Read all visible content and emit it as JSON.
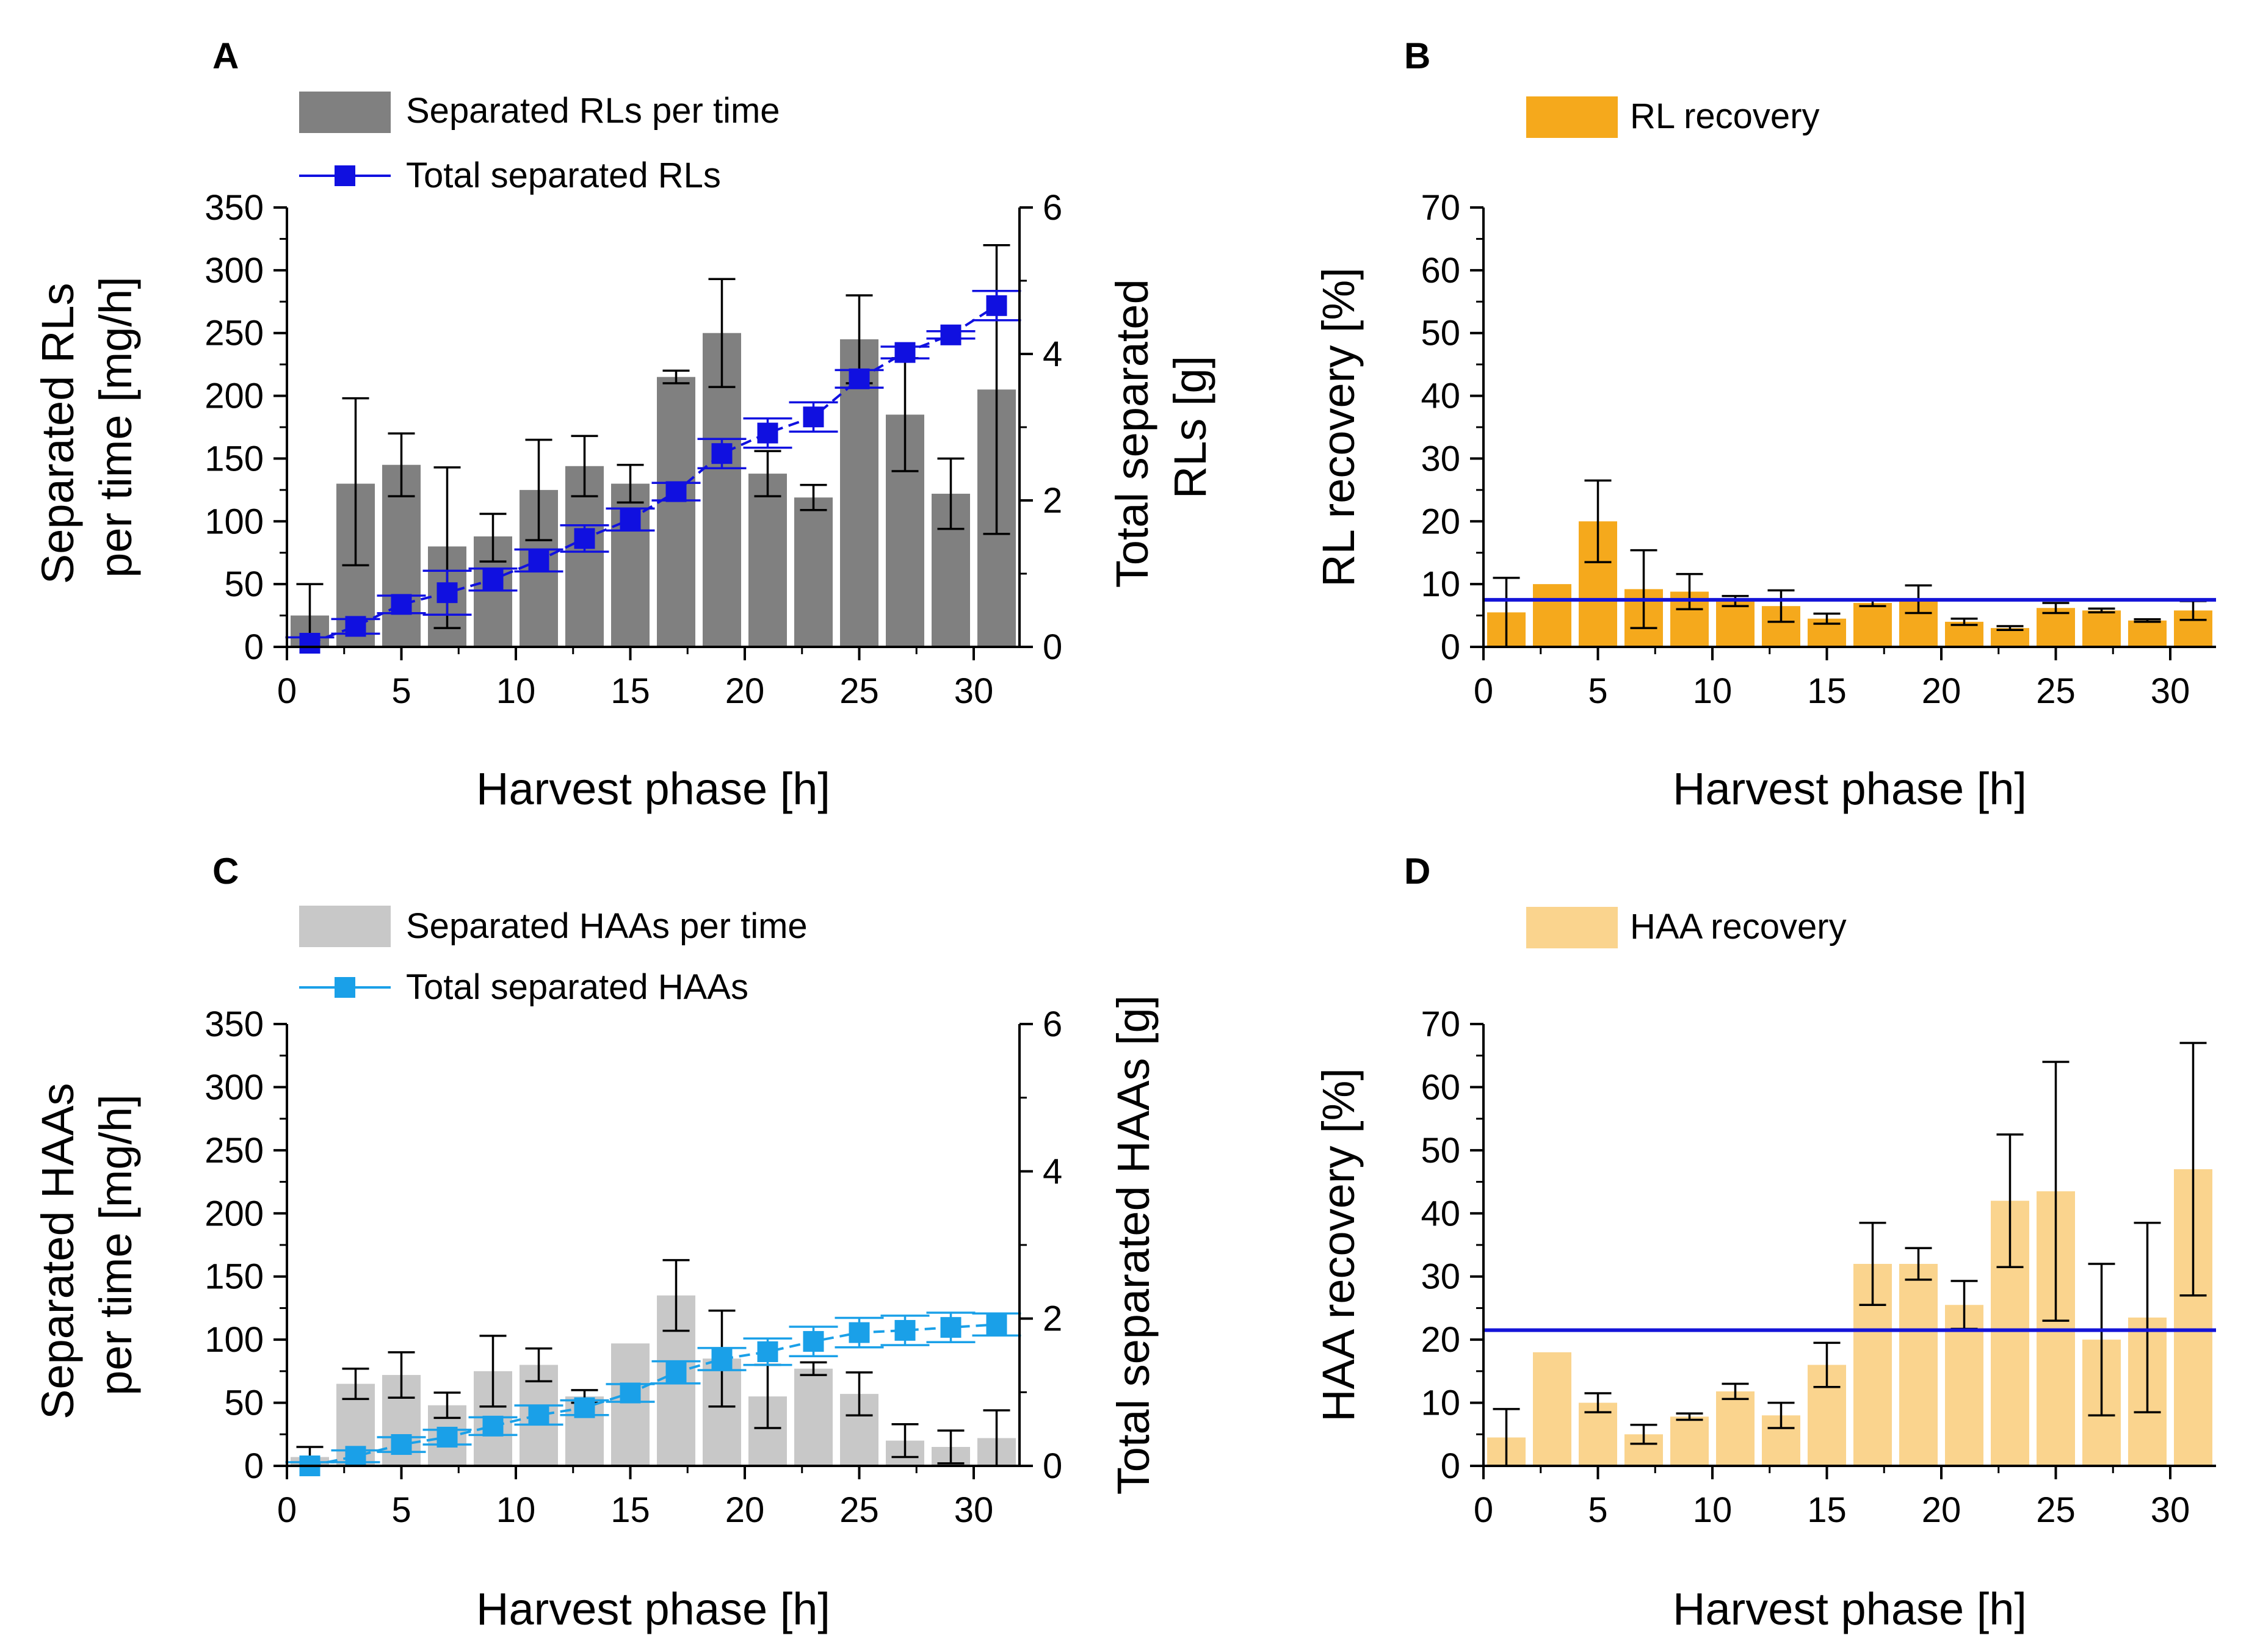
{
  "colors": {
    "dark_gray": "#808080",
    "light_gray": "#c8c8c8",
    "blue": "#1010e0",
    "light_blue": "#1aa0e8",
    "orange": "#f5a91c",
    "light_orange": "#fad48e",
    "mean_line": "#1414d8"
  },
  "chart_data": [
    {
      "panel": "A",
      "type": "bar+line",
      "xlabel": "Harvest phase [h]",
      "ylabel_lines": [
        "Separated RLs",
        "per time [mg/h]"
      ],
      "y2label_lines": [
        "Total separated",
        "RLs [g]"
      ],
      "xlim": [
        0,
        32
      ],
      "ylim": [
        0,
        350
      ],
      "y2lim": [
        0,
        6
      ],
      "xticks": [
        "0",
        "5",
        "10",
        "15",
        "20",
        "25",
        "30"
      ],
      "yticks": [
        "0",
        "50",
        "100",
        "150",
        "200",
        "250",
        "300",
        "350"
      ],
      "y2ticks": [
        "0",
        "2",
        "4",
        "6"
      ],
      "legend": [
        "Separated RLs per time",
        "Total separated RLs"
      ],
      "bars": {
        "name": "Separated RLs per time",
        "x": [
          1,
          3,
          5,
          7,
          9,
          11,
          13,
          15,
          17,
          19,
          21,
          23,
          25,
          27,
          29,
          31
        ],
        "values": [
          25,
          130,
          145,
          80,
          88,
          125,
          144,
          130,
          215,
          250,
          138,
          119,
          245,
          185,
          122,
          205
        ],
        "err_low": [
          25,
          65,
          25,
          65,
          20,
          40,
          24,
          15,
          5,
          43,
          18,
          10,
          35,
          45,
          28,
          115
        ],
        "err_high": [
          25,
          68,
          25,
          63,
          18,
          40,
          24,
          15,
          5,
          43,
          18,
          10,
          35,
          45,
          28,
          115
        ]
      },
      "line": {
        "name": "Total separated RLs",
        "x": [
          1,
          3,
          5,
          7,
          9,
          11,
          13,
          15,
          17,
          19,
          21,
          23,
          25,
          27,
          29,
          31
        ],
        "values": [
          0.05,
          0.28,
          0.58,
          0.74,
          0.92,
          1.18,
          1.48,
          1.74,
          2.12,
          2.64,
          2.92,
          3.14,
          3.66,
          4.02,
          4.26,
          4.66
        ],
        "err": [
          0.08,
          0.1,
          0.12,
          0.3,
          0.15,
          0.15,
          0.18,
          0.15,
          0.12,
          0.2,
          0.2,
          0.2,
          0.12,
          0.08,
          0.05,
          0.2
        ]
      }
    },
    {
      "panel": "B",
      "type": "bar",
      "xlabel": "Harvest phase [h]",
      "ylabel": "RL recovery [%]",
      "xlim": [
        0,
        32
      ],
      "ylim": [
        0,
        70
      ],
      "xticks": [
        "0",
        "5",
        "10",
        "15",
        "20",
        "25",
        "30"
      ],
      "yticks": [
        "0",
        "10",
        "20",
        "30",
        "40",
        "50",
        "60",
        "70"
      ],
      "legend": [
        "RL recovery"
      ],
      "mean_line": 7.5,
      "bars": {
        "name": "RL recovery",
        "x": [
          1,
          3,
          5,
          7,
          9,
          11,
          13,
          15,
          17,
          19,
          21,
          23,
          25,
          27,
          29,
          31
        ],
        "values": [
          5.5,
          10,
          20,
          9.2,
          8.8,
          7.3,
          6.5,
          4.5,
          7,
          7.6,
          4,
          3,
          6.2,
          5.8,
          4.2,
          5.8
        ],
        "err": [
          5.5,
          0,
          6.5,
          6.2,
          2.8,
          0.8,
          2.5,
          0.8,
          0.5,
          2.2,
          0.5,
          0.3,
          0.8,
          0.3,
          0.2,
          1.5
        ]
      }
    },
    {
      "panel": "C",
      "type": "bar+line",
      "xlabel": "Harvest phase [h]",
      "ylabel_lines": [
        "Separated HAAs",
        "per time [mg/h]"
      ],
      "y2label": "Total separated HAAs [g]",
      "xlim": [
        0,
        32
      ],
      "ylim": [
        0,
        350
      ],
      "y2lim": [
        0,
        6
      ],
      "xticks": [
        "0",
        "5",
        "10",
        "15",
        "20",
        "25",
        "30"
      ],
      "yticks": [
        "0",
        "50",
        "100",
        "150",
        "200",
        "250",
        "300",
        "350"
      ],
      "y2ticks": [
        "0",
        "2",
        "4",
        "6"
      ],
      "legend": [
        "Separated HAAs per time",
        "Total separated HAAs"
      ],
      "bars": {
        "name": "Separated HAAs per time",
        "x": [
          1,
          3,
          5,
          7,
          9,
          11,
          13,
          15,
          17,
          19,
          21,
          23,
          25,
          27,
          29,
          31
        ],
        "values": [
          7,
          65,
          72,
          48,
          75,
          80,
          55,
          97,
          135,
          85,
          55,
          77,
          57,
          20,
          15,
          22
        ],
        "err": [
          8,
          12,
          18,
          10,
          28,
          13,
          5,
          0,
          28,
          38,
          25,
          5,
          17,
          13,
          13,
          22
        ]
      },
      "line": {
        "name": "Total separated HAAs",
        "x": [
          1,
          3,
          5,
          7,
          9,
          11,
          13,
          15,
          17,
          19,
          21,
          23,
          25,
          27,
          29,
          31
        ],
        "values": [
          0.0,
          0.13,
          0.29,
          0.39,
          0.54,
          0.69,
          0.79,
          0.99,
          1.27,
          1.45,
          1.55,
          1.69,
          1.81,
          1.84,
          1.88,
          1.92
        ],
        "err": [
          0.05,
          0.08,
          0.1,
          0.1,
          0.12,
          0.13,
          0.1,
          0.12,
          0.15,
          0.15,
          0.18,
          0.2,
          0.2,
          0.2,
          0.2,
          0.15
        ]
      }
    },
    {
      "panel": "D",
      "type": "bar",
      "xlabel": "Harvest phase [h]",
      "ylabel": "HAA recovery [%]",
      "xlim": [
        0,
        32
      ],
      "ylim": [
        0,
        70
      ],
      "xticks": [
        "0",
        "5",
        "10",
        "15",
        "20",
        "25",
        "30"
      ],
      "yticks": [
        "0",
        "10",
        "20",
        "30",
        "40",
        "50",
        "60",
        "70"
      ],
      "legend": [
        "HAA recovery"
      ],
      "mean_line": 21.5,
      "bars": {
        "name": "HAA recovery",
        "x": [
          1,
          3,
          5,
          7,
          9,
          11,
          13,
          15,
          17,
          19,
          21,
          23,
          25,
          27,
          29,
          31
        ],
        "values": [
          4.5,
          18,
          10,
          5,
          7.8,
          11.8,
          8,
          16,
          32,
          32,
          25.5,
          42,
          43.5,
          20,
          23.5,
          47
        ],
        "err": [
          4.5,
          0,
          1.5,
          1.5,
          0.5,
          1.2,
          2,
          3.5,
          6.5,
          2.5,
          3.8,
          10.5,
          20.5,
          12,
          15,
          20
        ]
      }
    }
  ]
}
